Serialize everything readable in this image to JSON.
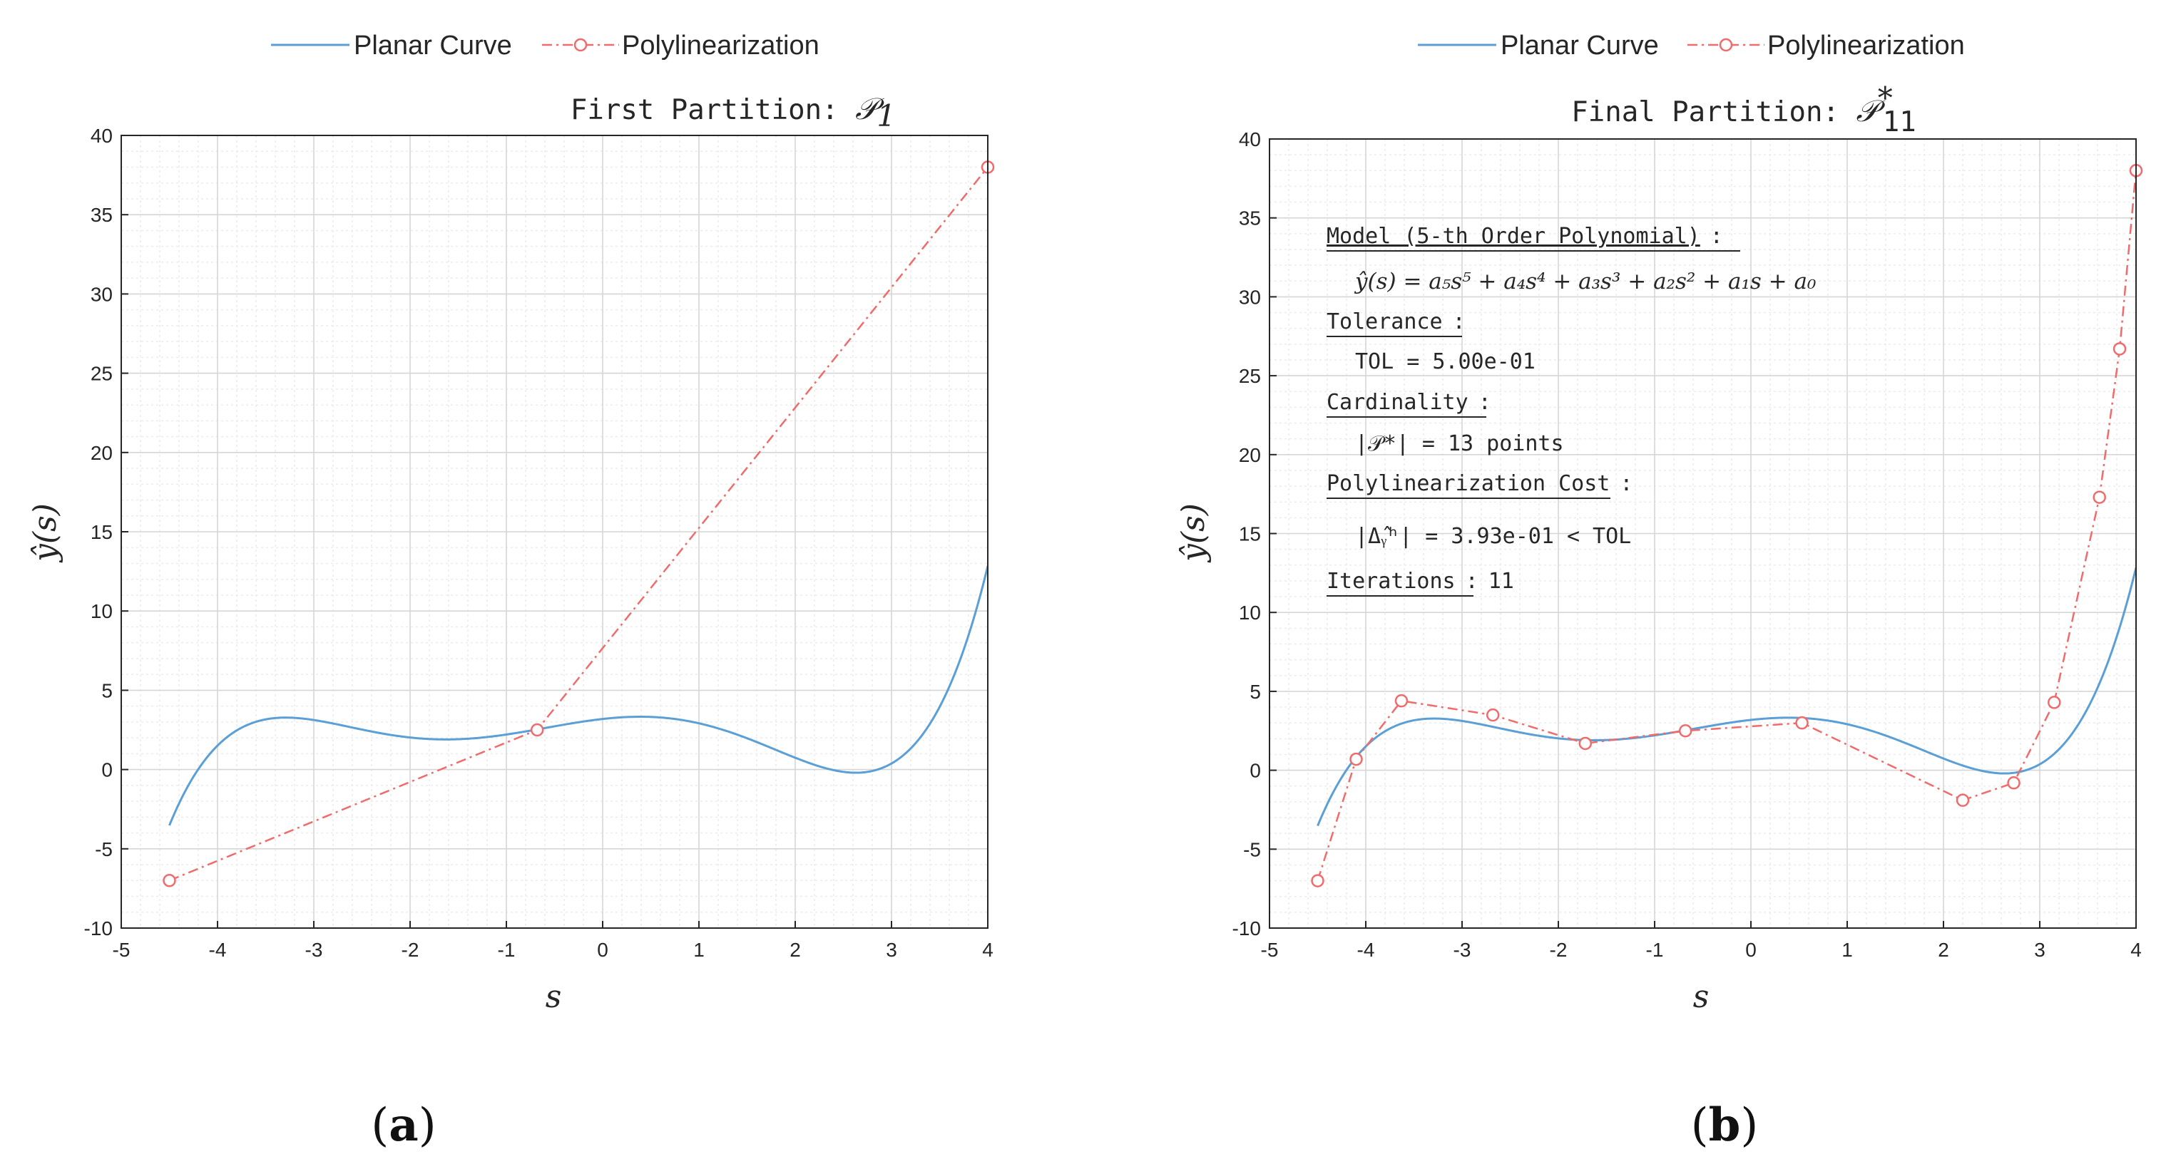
{
  "colors": {
    "curve": "#5a9fd6",
    "poly": "#f06b6b",
    "grid_major": "#d6d6d6",
    "grid_minor": "#ececec",
    "axes": "#262626"
  },
  "legend": {
    "curve_label": "Planar Curve",
    "poly_label": "Polylinearization"
  },
  "panels": [
    {
      "label": "a",
      "title_text": "First Partition: ",
      "title_math": "𝒫",
      "title_sub": "1",
      "title_sup": ""
    },
    {
      "label": "b",
      "title_text": "Final Partition: ",
      "title_math": "𝒫",
      "title_sub": "11",
      "title_sup": "*"
    }
  ],
  "annotation": {
    "model_label": "Model (5-th Order Polynomial)",
    "model_eq": "ŷ(s) = a₅s⁵ + a₄s⁴ + a₃s³ + a₂s² + a₁s + a₀",
    "tolerance_label": "Tolerance",
    "tolerance_value": "TOL = 5.00e-01",
    "cardinality_label": "Cardinality",
    "cardinality_value": "|𝒫*| = 13 points",
    "cost_label": "Polylinearization Cost",
    "cost_value": "|Δ̂ᵧʰ| = 3.93e-01 < TOL",
    "iterations_label": "Iterations",
    "iterations_value": "11",
    "colon": ":"
  },
  "chart_data": [
    {
      "type": "line",
      "title": "First Partition: 𝒫1",
      "xlabel": "s",
      "ylabel": "ŷ(s)",
      "xlim": [
        -5,
        4
      ],
      "ylim": [
        -10,
        40
      ],
      "xticks": [
        -5,
        -4,
        -3,
        -2,
        -1,
        0,
        1,
        2,
        3,
        4
      ],
      "yticks": [
        -10,
        -5,
        0,
        5,
        10,
        15,
        20,
        25,
        30,
        35,
        40
      ],
      "grid": true,
      "minor_grid": true,
      "legend_position": "top-outside",
      "series": [
        {
          "name": "Planar Curve",
          "style": "solid",
          "model_coefficients": {
            "a5": 0.0246,
            "a4": 0.0584,
            "a3": -0.3474,
            "a2": -0.6853,
            "a1": 0.6768,
            "a0": 3.19
          },
          "x_range": [
            -4.5,
            4
          ]
        },
        {
          "name": "Polylinearization",
          "style": "dash-dot",
          "marker": "circle",
          "x": [
            -4.5,
            -0.68,
            4.0
          ],
          "y": [
            -7.0,
            2.5,
            38.0
          ]
        }
      ]
    },
    {
      "type": "line",
      "title": "Final Partition: 𝒫*11",
      "xlabel": "s",
      "ylabel": "ŷ(s)",
      "xlim": [
        -5,
        4
      ],
      "ylim": [
        -10,
        40
      ],
      "xticks": [
        -5,
        -4,
        -3,
        -2,
        -1,
        0,
        1,
        2,
        3,
        4
      ],
      "yticks": [
        -10,
        -5,
        0,
        5,
        10,
        15,
        20,
        25,
        30,
        35,
        40
      ],
      "grid": true,
      "minor_grid": true,
      "legend_position": "top-outside",
      "series": [
        {
          "name": "Planar Curve",
          "style": "solid",
          "model_coefficients": {
            "a5": 0.0246,
            "a4": 0.0584,
            "a3": -0.3474,
            "a2": -0.6853,
            "a1": 0.6768,
            "a0": 3.19
          },
          "x_range": [
            -4.5,
            4
          ]
        },
        {
          "name": "Polylinearization",
          "style": "dash-dot",
          "marker": "circle",
          "x": [
            -4.5,
            -4.1,
            -3.63,
            -2.68,
            -1.72,
            -0.68,
            0.53,
            2.2,
            2.73,
            3.15,
            3.62,
            3.83,
            4.0
          ],
          "y": [
            -7.0,
            0.7,
            4.4,
            3.5,
            1.7,
            2.5,
            3.0,
            -1.9,
            -0.8,
            4.3,
            17.3,
            26.7,
            38.0
          ]
        }
      ]
    }
  ]
}
